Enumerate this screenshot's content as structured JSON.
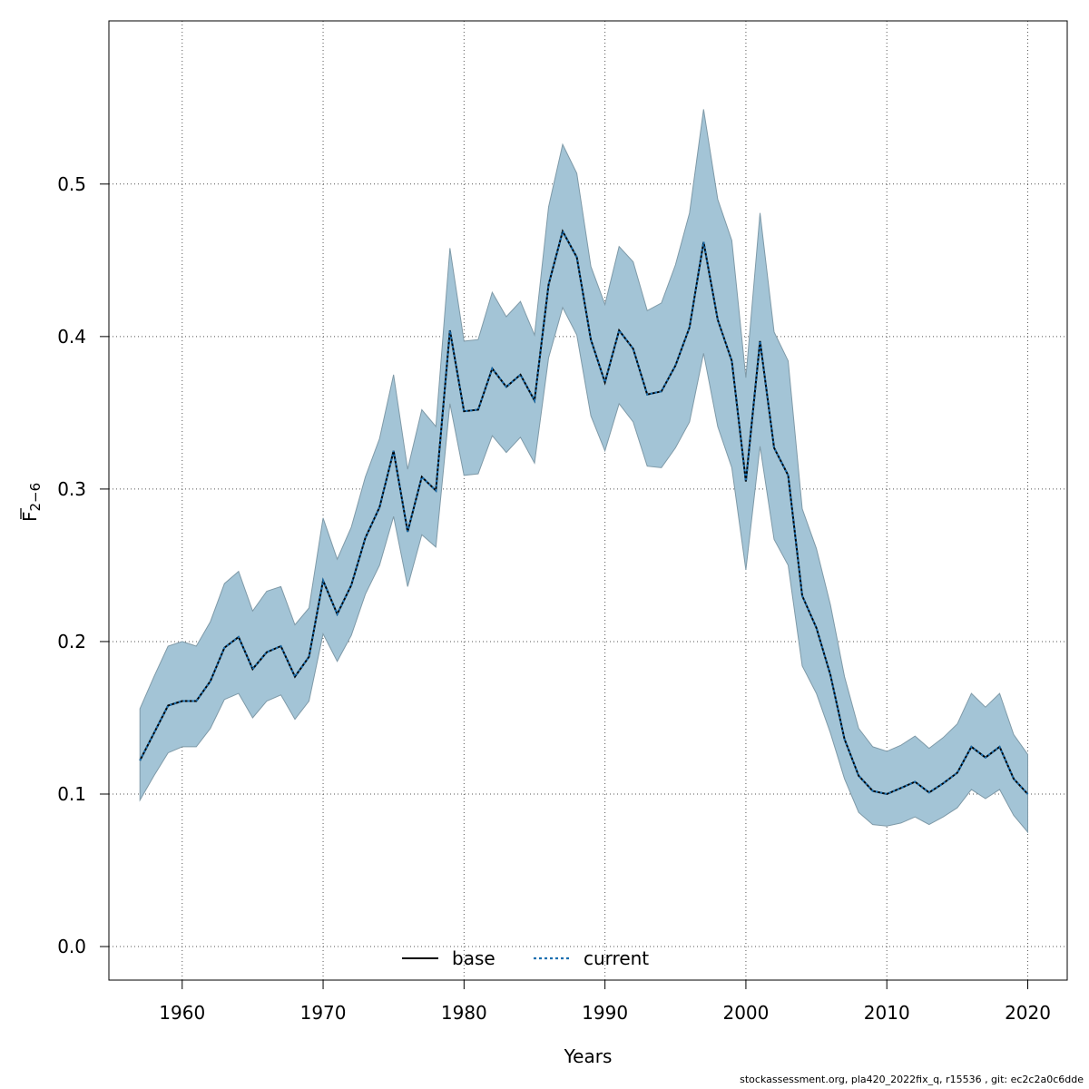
{
  "chart_data": {
    "type": "line",
    "xlabel": "Years",
    "ylabel_main": "F",
    "ylabel_sub": "2−6",
    "xlim": [
      1954.8,
      2022.8
    ],
    "ylim": [
      -0.022,
      0.607
    ],
    "x_ticks": [
      1960,
      1970,
      1980,
      1990,
      2000,
      2010,
      2020
    ],
    "y_ticks": [
      0.0,
      0.1,
      0.2,
      0.3,
      0.4,
      0.5
    ],
    "y_tick_labels": [
      "0.0",
      "0.1",
      "0.2",
      "0.3",
      "0.4",
      "0.5"
    ],
    "grid": true,
    "legend_position": "bottom",
    "band_color": "#a3c4d6",
    "line_color": "#000000",
    "current_color": "#1a6fb0",
    "years": [
      1957,
      1958,
      1959,
      1960,
      1961,
      1962,
      1963,
      1964,
      1965,
      1966,
      1967,
      1968,
      1969,
      1970,
      1971,
      1972,
      1973,
      1974,
      1975,
      1976,
      1977,
      1978,
      1979,
      1980,
      1981,
      1982,
      1983,
      1984,
      1985,
      1986,
      1987,
      1988,
      1989,
      1990,
      1991,
      1992,
      1993,
      1994,
      1995,
      1996,
      1997,
      1998,
      1999,
      2000,
      2001,
      2002,
      2003,
      2004,
      2005,
      2006,
      2007,
      2008,
      2009,
      2010,
      2011,
      2012,
      2013,
      2014,
      2015,
      2016,
      2017,
      2018,
      2019,
      2020
    ],
    "estimate": [
      0.122,
      0.14,
      0.158,
      0.161,
      0.161,
      0.174,
      0.196,
      0.203,
      0.182,
      0.193,
      0.197,
      0.177,
      0.19,
      0.24,
      0.218,
      0.237,
      0.268,
      0.288,
      0.325,
      0.272,
      0.308,
      0.299,
      0.404,
      0.351,
      0.352,
      0.379,
      0.367,
      0.375,
      0.358,
      0.434,
      0.469,
      0.452,
      0.398,
      0.37,
      0.404,
      0.392,
      0.362,
      0.364,
      0.381,
      0.406,
      0.462,
      0.411,
      0.384,
      0.305,
      0.397,
      0.327,
      0.309,
      0.23,
      0.209,
      0.178,
      0.136,
      0.112,
      0.102,
      0.1,
      0.104,
      0.108,
      0.101,
      0.107,
      0.114,
      0.131,
      0.124,
      0.131,
      0.11,
      0.1
    ],
    "lower": [
      0.096,
      0.112,
      0.127,
      0.131,
      0.131,
      0.143,
      0.162,
      0.166,
      0.15,
      0.161,
      0.165,
      0.149,
      0.161,
      0.205,
      0.187,
      0.204,
      0.231,
      0.25,
      0.282,
      0.236,
      0.27,
      0.262,
      0.356,
      0.309,
      0.31,
      0.335,
      0.324,
      0.334,
      0.317,
      0.386,
      0.419,
      0.401,
      0.348,
      0.325,
      0.356,
      0.344,
      0.315,
      0.314,
      0.327,
      0.344,
      0.389,
      0.341,
      0.314,
      0.247,
      0.328,
      0.267,
      0.25,
      0.184,
      0.166,
      0.14,
      0.11,
      0.088,
      0.08,
      0.079,
      0.081,
      0.085,
      0.08,
      0.085,
      0.091,
      0.103,
      0.097,
      0.103,
      0.086,
      0.075
    ],
    "upper": [
      0.156,
      0.177,
      0.197,
      0.2,
      0.197,
      0.213,
      0.238,
      0.246,
      0.22,
      0.233,
      0.236,
      0.211,
      0.222,
      0.281,
      0.254,
      0.275,
      0.308,
      0.333,
      0.375,
      0.313,
      0.352,
      0.341,
      0.458,
      0.397,
      0.398,
      0.429,
      0.413,
      0.423,
      0.401,
      0.485,
      0.526,
      0.507,
      0.446,
      0.421,
      0.459,
      0.449,
      0.417,
      0.422,
      0.447,
      0.481,
      0.549,
      0.49,
      0.463,
      0.373,
      0.481,
      0.403,
      0.384,
      0.287,
      0.261,
      0.224,
      0.177,
      0.143,
      0.131,
      0.128,
      0.132,
      0.138,
      0.13,
      0.137,
      0.146,
      0.166,
      0.157,
      0.166,
      0.139,
      0.126
    ]
  },
  "legend": {
    "base_label": "base",
    "current_label": "current"
  },
  "footer": "stockassessment.org, pla420_2022fix_q, r15536 , git: ec2c2a0c6dde"
}
